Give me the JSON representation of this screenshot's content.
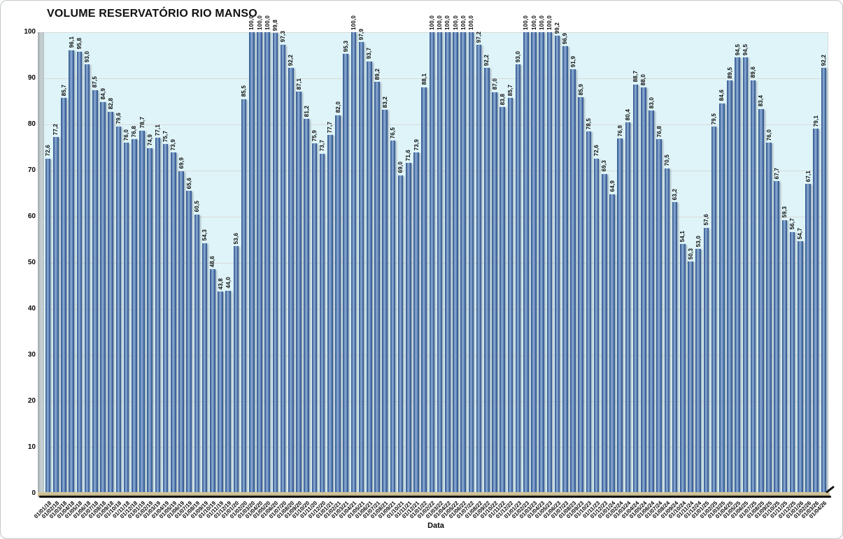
{
  "title": "VOLUME RESERVATÓRIO RIO MANSO",
  "x_axis_title": "Data",
  "chart_data": {
    "type": "bar",
    "title": "VOLUME RESERVATÓRIO RIO MANSO",
    "xlabel": "Data",
    "ylabel": "",
    "ylim": [
      0,
      100
    ],
    "ytick_step": 10,
    "grid": true,
    "legend": "none",
    "decimal_separator": ",",
    "categories": [
      "01/01/18",
      "01/02/18",
      "01/03/18",
      "01/04/18",
      "01/05/18",
      "01/06/18",
      "01/07/18",
      "01/08/18",
      "01/09/18",
      "01/10/18",
      "01/11/18",
      "01/12/18",
      "01/01/19",
      "01/02/19",
      "01/03/19",
      "01/04/19",
      "01/05/19",
      "01/06/19",
      "01/07/19",
      "01/08/19",
      "01/09/19",
      "01/10/19",
      "01/11/19",
      "01/12/19",
      "01/01/20",
      "01/02/20",
      "01/03/20",
      "01/04/20",
      "01/05/20",
      "01/06/20",
      "01/07/20",
      "01/08/20",
      "01/09/20",
      "01/10/20",
      "01/11/20",
      "01/12/20",
      "01/01/21",
      "01/02/21",
      "01/03/21",
      "01/04/21",
      "01/05/21",
      "01/06/21",
      "01/07/21",
      "01/08/21",
      "01/09/21",
      "01/10/21",
      "01/11/21",
      "01/12/21",
      "01/01/22",
      "01/02/22",
      "01/03/22",
      "01/04/22",
      "01/05/22",
      "01/06/22",
      "01/07/22",
      "01/08/22",
      "01/09/22",
      "01/10/22",
      "01/11/22",
      "01/12/22",
      "01/01/23",
      "01/02/23",
      "01/03/23",
      "01/04/23",
      "01/05/23",
      "01/06/23",
      "01/07/23",
      "01/08/23",
      "01/09/23",
      "01/10/23",
      "01/11/23",
      "01/12/23",
      "01/01/24",
      "01/02/24",
      "01/03/24",
      "01/04/24",
      "01/05/24",
      "01/06/24",
      "01/07/24",
      "01/08/24",
      "01/09/24",
      "01/10/24",
      "01/11/24",
      "01/12/24",
      "01/01/25",
      "01/02/25",
      "01/03/25",
      "01/04/25",
      "01/05/25",
      "01/06/25",
      "01/07/25",
      "01/08/25",
      "01/09/25",
      "01/10/25",
      "01/11/25",
      "01/12/25",
      "01/01/26",
      "01/02/26",
      "01/03/26",
      "01/04/26"
    ],
    "values": [
      72.6,
      77.2,
      85.7,
      96.1,
      95.8,
      93.0,
      87.5,
      84.9,
      82.8,
      79.6,
      76.0,
      76.8,
      78.7,
      74.9,
      77.1,
      75.7,
      73.9,
      69.9,
      65.6,
      60.5,
      54.3,
      48.6,
      43.8,
      44.0,
      53.6,
      85.5,
      100.0,
      100.0,
      100.0,
      99.8,
      97.3,
      92.2,
      87.1,
      81.2,
      75.9,
      73.7,
      77.7,
      82.0,
      95.3,
      100.0,
      97.9,
      93.7,
      89.2,
      83.2,
      76.5,
      69.0,
      71.6,
      73.9,
      88.1,
      100.0,
      100.0,
      100.0,
      100.0,
      100.0,
      100.0,
      97.2,
      92.2,
      87.0,
      83.8,
      85.7,
      93.0,
      100.0,
      100.0,
      100.0,
      100.0,
      99.2,
      96.9,
      91.9,
      85.9,
      78.5,
      72.6,
      69.3,
      64.9,
      76.9,
      80.4,
      88.7,
      88.0,
      83.0,
      76.8,
      70.5,
      63.2,
      54.1,
      50.3,
      53.0,
      57.6,
      79.5,
      84.6,
      89.5,
      94.5,
      94.5,
      89.6,
      83.4,
      76.0,
      67.7,
      59.3,
      56.7,
      54.7,
      67.1,
      79.1,
      92.2
    ],
    "colors": {
      "bar_dark": "#2e5187",
      "bar_mid": "#547aaf",
      "bar_highlight": "#93afd4",
      "plot_background": "#def4f8",
      "gridline": "#d9d9d9",
      "floor": "#c2b484",
      "wall": "#b7c0c2",
      "axis_line": "#111111",
      "text": "#0a0a0a"
    }
  }
}
